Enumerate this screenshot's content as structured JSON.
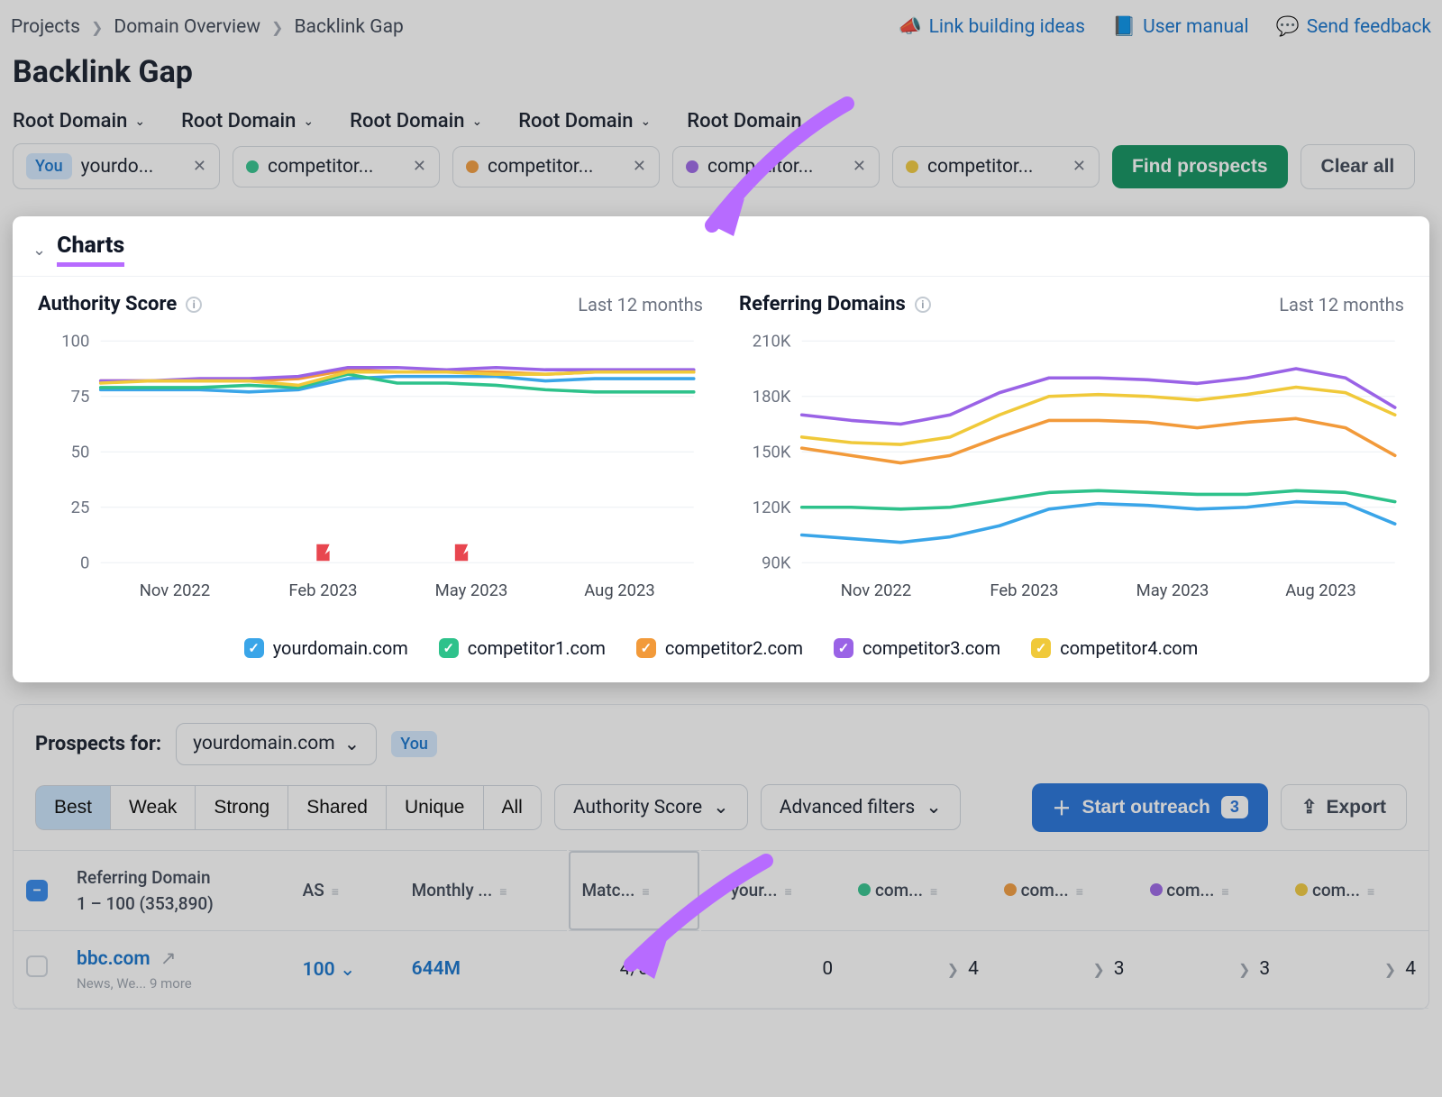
{
  "breadcrumb": [
    "Projects",
    "Domain Overview",
    "Backlink Gap"
  ],
  "toplinks": {
    "ideas": "Link building ideas",
    "manual": "User manual",
    "feedback": "Send feedback"
  },
  "page_title": "Backlink Gap",
  "domain_selector_label": "Root Domain",
  "you_label": "You",
  "domains": [
    {
      "label": "yourdo...",
      "color": "#3aa5e8",
      "you": true
    },
    {
      "label": "competitor...",
      "color": "#2ec28b"
    },
    {
      "label": "competitor...",
      "color": "#f29a3a"
    },
    {
      "label": "competitor...",
      "color": "#9a63e6"
    },
    {
      "label": "competitor...",
      "color": "#f0c93a"
    }
  ],
  "actions": {
    "find": "Find prospects",
    "clear": "Clear all"
  },
  "charts": {
    "section_title": "Charts",
    "period": "Last 12 months",
    "x_labels": [
      "Nov 2022",
      "Feb 2023",
      "May 2023",
      "Aug 2023"
    ],
    "authority": {
      "title": "Authority Score",
      "ylabels": [
        "100",
        "75",
        "50",
        "25",
        "0"
      ],
      "ymax": 100,
      "series": [
        {
          "color": "#3aa5e8",
          "values": [
            78,
            78,
            78,
            77,
            78,
            83,
            84,
            84,
            84,
            82,
            83,
            83,
            83
          ]
        },
        {
          "color": "#2ec28b",
          "values": [
            79,
            79,
            79,
            80,
            79,
            85,
            81,
            81,
            80,
            78,
            77,
            77,
            77
          ]
        },
        {
          "color": "#f29a3a",
          "values": [
            82,
            82,
            82,
            82,
            83,
            87,
            86,
            86,
            86,
            85,
            86,
            86,
            86
          ]
        },
        {
          "color": "#9a63e6",
          "values": [
            82,
            82,
            83,
            83,
            84,
            88,
            88,
            87,
            88,
            87,
            87,
            87,
            87
          ]
        },
        {
          "color": "#f0c93a",
          "values": [
            81,
            82,
            82,
            82,
            80,
            86,
            86,
            86,
            85,
            85,
            86,
            86,
            86
          ]
        }
      ],
      "flag_positions": [
        4.5,
        7.3
      ]
    },
    "referring": {
      "title": "Referring Domains",
      "ylabels": [
        "210K",
        "180K",
        "150K",
        "120K",
        "90K"
      ],
      "ymin": 90,
      "ymax": 210,
      "series": [
        {
          "color": "#3aa5e8",
          "values": [
            105,
            103,
            101,
            104,
            110,
            119,
            122,
            121,
            119,
            120,
            123,
            122,
            111
          ]
        },
        {
          "color": "#2ec28b",
          "values": [
            120,
            120,
            119,
            120,
            124,
            128,
            129,
            128,
            127,
            127,
            129,
            128,
            123
          ]
        },
        {
          "color": "#f29a3a",
          "values": [
            152,
            148,
            144,
            148,
            158,
            167,
            167,
            166,
            163,
            166,
            168,
            163,
            148
          ]
        },
        {
          "color": "#9a63e6",
          "values": [
            170,
            167,
            165,
            170,
            182,
            190,
            190,
            189,
            187,
            190,
            195,
            190,
            174
          ]
        },
        {
          "color": "#f0c93a",
          "values": [
            158,
            155,
            154,
            158,
            170,
            180,
            181,
            180,
            178,
            181,
            185,
            182,
            170
          ]
        }
      ]
    },
    "legend": [
      {
        "label": "yourdomain.com",
        "color": "#3aa5e8"
      },
      {
        "label": "competitor1.com",
        "color": "#2ec28b"
      },
      {
        "label": "competitor2.com",
        "color": "#f29a3a"
      },
      {
        "label": "competitor3.com",
        "color": "#9a63e6"
      },
      {
        "label": "competitor4.com",
        "color": "#f0c93a"
      }
    ]
  },
  "prospects": {
    "label": "Prospects for:",
    "domain": "yourdomain.com",
    "tabs": [
      "Best",
      "Weak",
      "Strong",
      "Shared",
      "Unique",
      "All"
    ],
    "active_tab": "Best",
    "filter_as": "Authority Score",
    "filter_adv": "Advanced filters",
    "outreach": "Start outreach",
    "outreach_count": "3",
    "export": "Export",
    "columns": {
      "refdom": "Referring Domain",
      "range": "1 – 100 (353,890)",
      "as": "AS",
      "monthly": "Monthly ...",
      "matches": "Matc...",
      "your": "your...",
      "com1": "com...",
      "com2": "com...",
      "com3": "com...",
      "com4": "com..."
    },
    "row1": {
      "domain": "bbc.com",
      "sub": "News, We... 9 more",
      "as": "100",
      "monthly": "644M",
      "matches": "4/5",
      "your": "0",
      "c1": "4",
      "c2": "3",
      "c3": "3",
      "c4": "4"
    },
    "colors": {
      "your": "#3aa5e8",
      "c1": "#2ec28b",
      "c2": "#f29a3a",
      "c3": "#9a63e6",
      "c4": "#f0c93a"
    }
  },
  "style": {
    "highlight_purple": "#b76bff"
  }
}
